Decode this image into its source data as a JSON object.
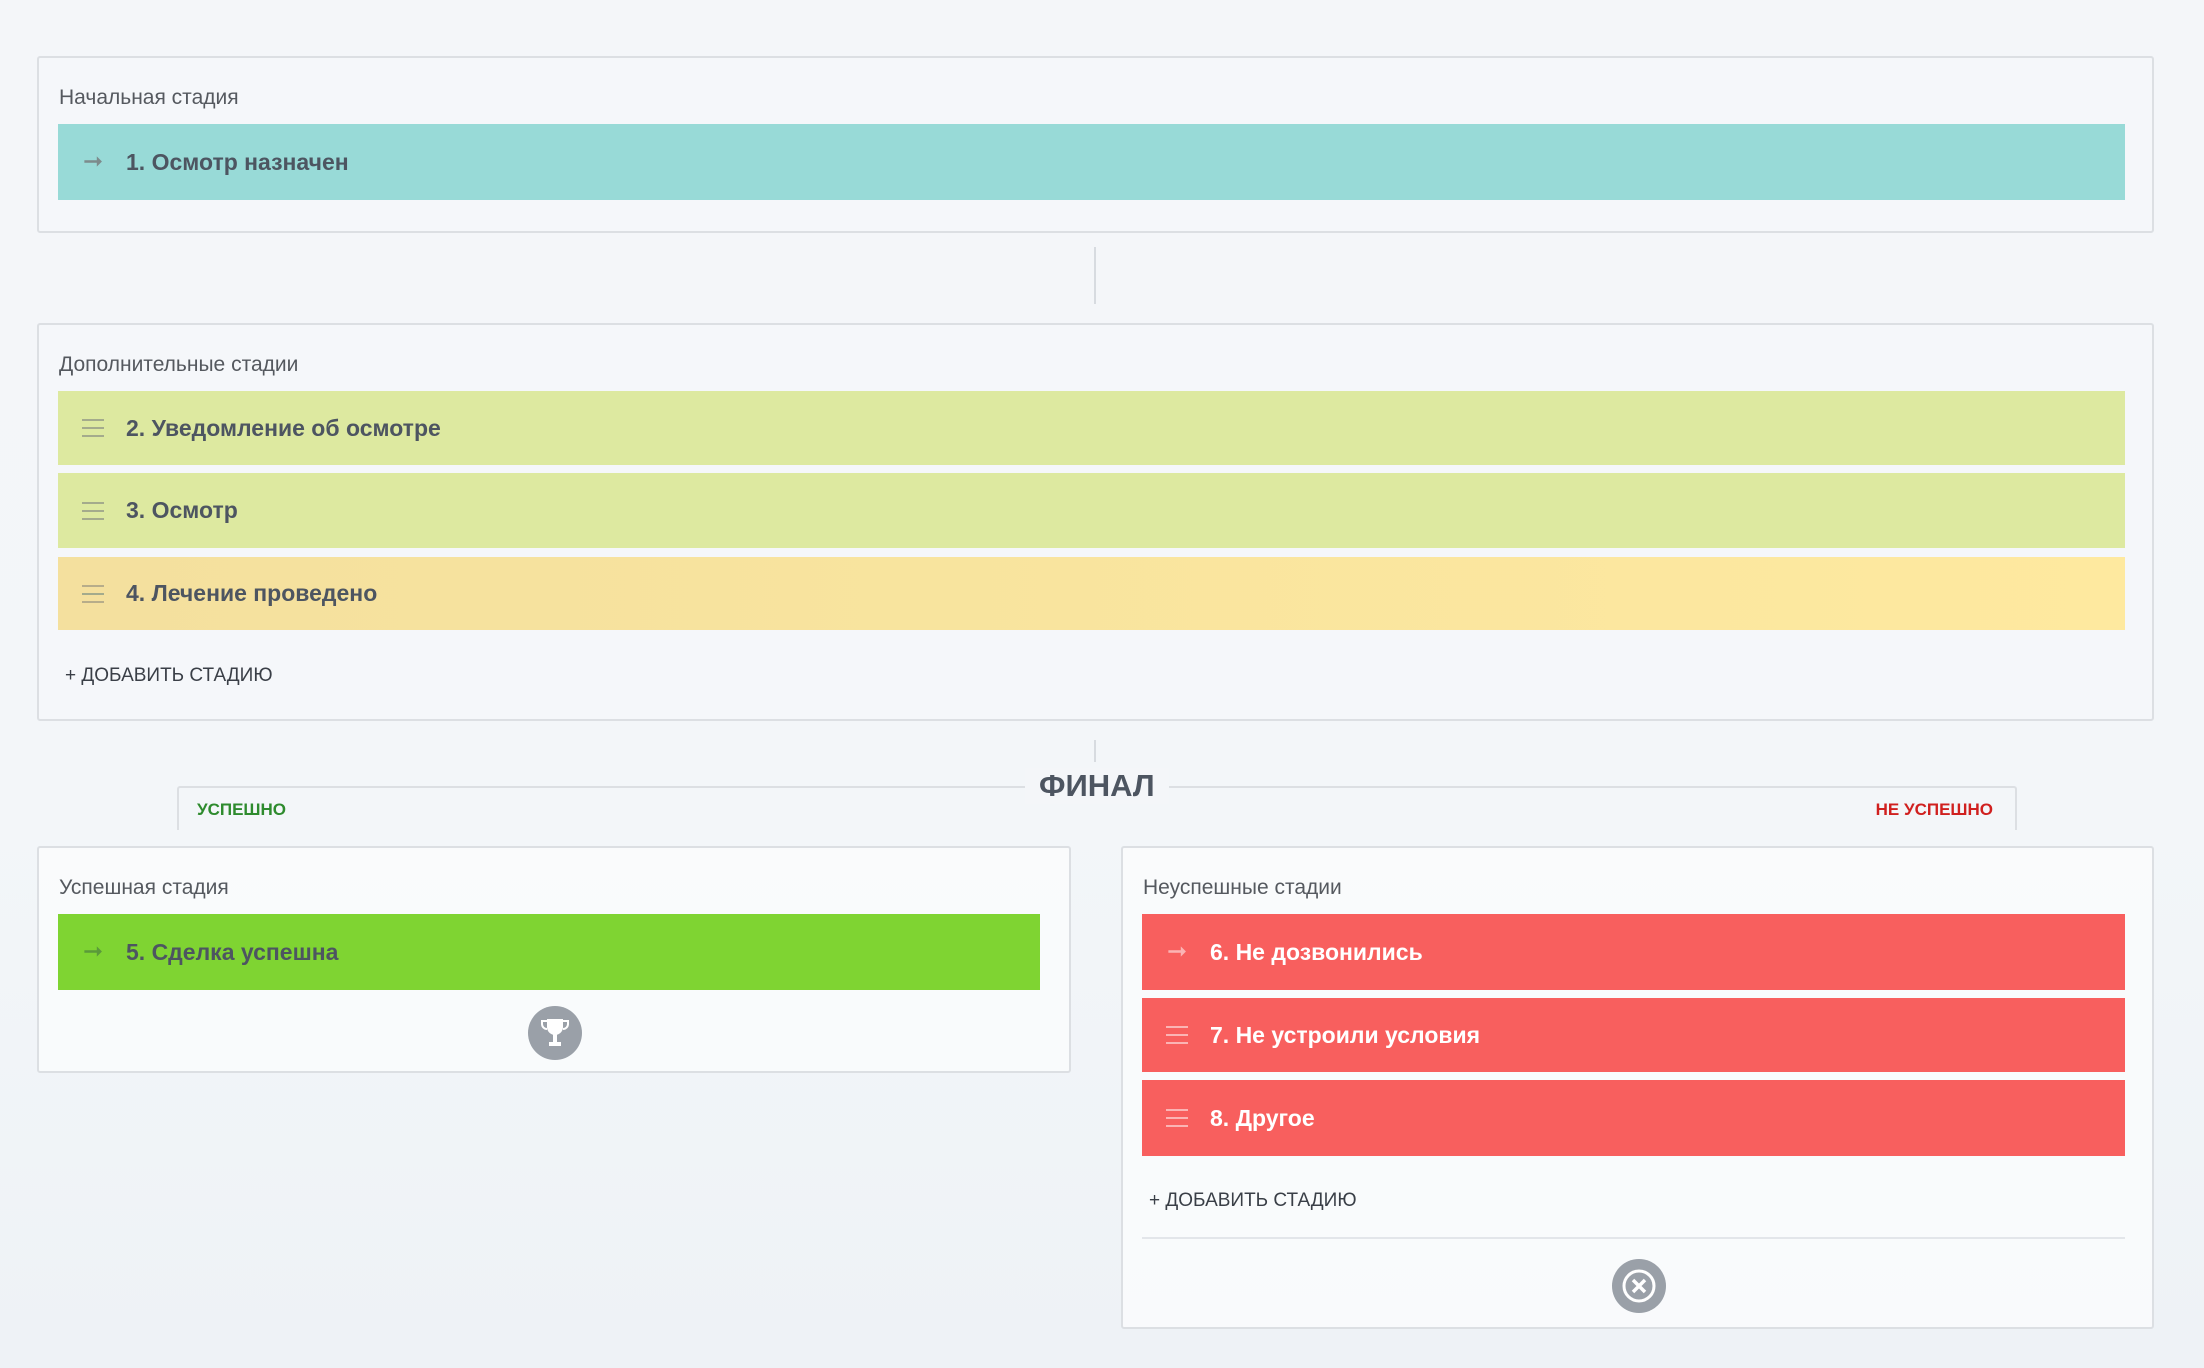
{
  "initial": {
    "label": "Начальная стадия",
    "stage": {
      "title": "1. Осмотр назначен",
      "color": "#98dad7",
      "icon": "arrow-right-icon"
    }
  },
  "additional": {
    "label": "Дополнительные стадии",
    "stages": [
      {
        "title": "2. Уведомление об осмотре",
        "color": "#dde9a0",
        "icon": "drag-handle-icon"
      },
      {
        "title": "3. Осмотр",
        "color": "#dde9a0",
        "icon": "drag-handle-icon"
      },
      {
        "title": "4. Лечение проведено",
        "color": "#fbe8a0",
        "icon": "drag-handle-icon"
      }
    ],
    "add_label": "+ ДОБАВИТЬ СТАДИЮ"
  },
  "final": {
    "title": "ФИНАЛ",
    "success_tab": "УСПЕШНО",
    "fail_tab": "НЕ УСПЕШНО",
    "success_color": "#2e8b2e",
    "fail_color": "#d0201f"
  },
  "success": {
    "label": "Успешная стадия",
    "stage": {
      "title": "5. Сделка успешна",
      "color": "#7fd432",
      "icon": "arrow-right-icon"
    },
    "footer_icon": "trophy-icon"
  },
  "fail": {
    "label": "Неуспешные стадии",
    "stages": [
      {
        "title": "6. Не дозвонились",
        "color": "#f85f5e",
        "icon": "arrow-right-icon"
      },
      {
        "title": "7. Не устроили условия",
        "color": "#f85f5e",
        "icon": "drag-handle-icon"
      },
      {
        "title": "8. Другое",
        "color": "#f85f5e",
        "icon": "drag-handle-icon"
      }
    ],
    "add_label": "+ ДОБАВИТЬ СТАДИЮ",
    "footer_icon": "cancel-circle-icon"
  }
}
